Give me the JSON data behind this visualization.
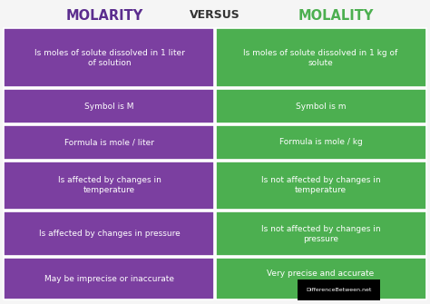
{
  "title_left": "MOLARITY",
  "title_versus": "VERSUS",
  "title_right": "MOLALITY",
  "title_left_color": "#5b2d8e",
  "title_versus_color": "#333333",
  "title_right_color": "#4caf50",
  "background_color": "#f5f5f5",
  "left_color": "#7b3fa0",
  "right_color": "#4caf50",
  "border_color": "#ffffff",
  "text_color": "#ffffff",
  "rows": [
    [
      "Is moles of solute dissolved in 1 liter\nof solution",
      "Is moles of solute dissolved in 1 kg of\nsolute"
    ],
    [
      "Symbol is M",
      "Symbol is m"
    ],
    [
      "Formula is mole / liter",
      "Formula is mole / kg"
    ],
    [
      "Is affected by changes in\ntemperature",
      "Is not affected by changes in\ntemperature"
    ],
    [
      "Is affected by changes in pressure",
      "Is not affected by changes in\npressure"
    ],
    [
      "May be imprecise or inaccurate",
      "Very precise and accurate"
    ]
  ],
  "row_heights_rel": [
    1.7,
    1.0,
    1.0,
    1.4,
    1.3,
    1.2
  ],
  "title_fontsize": 10.5,
  "versus_fontsize": 9,
  "cell_fontsize": 6.5,
  "watermark_text": "DifferenceBetween.net",
  "watermark_color": "#cccccc",
  "watermark_fontsize": 4.5
}
